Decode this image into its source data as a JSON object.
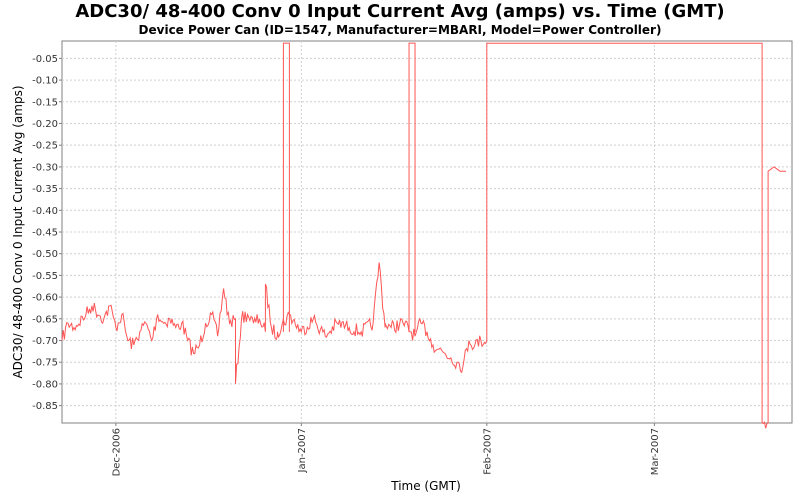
{
  "chart_data": {
    "type": "line",
    "title": "ADC30/ 48-400 Conv 0 Input Current  Avg (amps) vs. Time (GMT)",
    "subtitle": "Device Power Can (ID=1547, Manufacturer=MBARI, Model=Power Controller)",
    "xlabel": "Time (GMT)",
    "ylabel": "ADC30/ 48-400 Conv 0 Input Current  Avg (amps)",
    "xlim": [
      "2006-11-22",
      "2007-03-24"
    ],
    "ylim": [
      -0.89,
      -0.01
    ],
    "y_ticks": [
      -0.85,
      -0.8,
      -0.75,
      -0.7,
      -0.65,
      -0.6,
      -0.55,
      -0.5,
      -0.45,
      -0.4,
      -0.35,
      -0.3,
      -0.25,
      -0.2,
      -0.15,
      -0.1,
      -0.05
    ],
    "x_ticks": [
      {
        "date": "2006-12-01",
        "label": "Dec-2006"
      },
      {
        "date": "2007-01-01",
        "label": "Jan-2007"
      },
      {
        "date": "2007-02-01",
        "label": "Feb-2007"
      },
      {
        "date": "2007-03-01",
        "label": "Mar-2007"
      }
    ],
    "grid": true,
    "line_color": "#ff5555",
    "series": [
      {
        "x": [
          "2006-11-22",
          "2006-11-23",
          "2006-11-24",
          "2006-11-26",
          "2006-11-27",
          "2006-11-29",
          "2006-11-30",
          "2006-12-01",
          "2006-12-02",
          "2006-12-03",
          "2006-12-04",
          "2006-12-05",
          "2006-12-06",
          "2006-12-07",
          "2006-12-08",
          "2006-12-09",
          "2006-12-10",
          "2006-12-11",
          "2006-12-12",
          "2006-12-13",
          "2006-12-14",
          "2006-12-15",
          "2006-12-16",
          "2006-12-17",
          "2006-12-18",
          "2006-12-19",
          "2006-12-20",
          "2006-12-21",
          "2006-12-21",
          "2006-12-22",
          "2006-12-23",
          "2006-12-24",
          "2006-12-25",
          "2006-12-26",
          "2006-12-26",
          "2006-12-27",
          "2006-12-28",
          "2006-12-28",
          "2006-12-30",
          "2007-01-01",
          "2007-01-03",
          "2007-01-05",
          "2007-01-07",
          "2007-01-09",
          "2007-01-11",
          "2007-01-13",
          "2007-01-14",
          "2007-01-15",
          "2007-01-15",
          "2007-01-16",
          "2007-01-18",
          "2007-01-20",
          "2007-01-21",
          "2007-01-22",
          "2007-01-22",
          "2007-01-23",
          "2007-01-24",
          "2007-01-25",
          "2007-01-26",
          "2007-01-27",
          "2007-01-28",
          "2007-01-29",
          "2007-01-30",
          "2007-01-31",
          "2007-02-01",
          "2007-02-01",
          "2007-03-19",
          "2007-03-19",
          "2007-03-20",
          "2007-03-20",
          "2007-03-21",
          "2007-03-22",
          "2007-03-23"
        ],
        "y": [
          -0.7,
          -0.66,
          -0.67,
          -0.64,
          -0.62,
          -0.65,
          -0.62,
          -0.67,
          -0.64,
          -0.7,
          -0.71,
          -0.68,
          -0.66,
          -0.7,
          -0.64,
          -0.66,
          -0.65,
          -0.67,
          -0.66,
          -0.7,
          -0.73,
          -0.71,
          -0.66,
          -0.64,
          -0.69,
          -0.58,
          -0.66,
          -0.65,
          -0.8,
          -0.65,
          -0.64,
          -0.66,
          -0.65,
          -0.68,
          -0.57,
          -0.67,
          -0.69,
          -0.68,
          -0.64,
          -0.68,
          -0.65,
          -0.69,
          -0.66,
          -0.67,
          -0.68,
          -0.66,
          -0.52,
          -0.67,
          -0.66,
          -0.67,
          -0.66,
          -0.69,
          -0.66,
          -0.68,
          -0.68,
          -0.71,
          -0.72,
          -0.73,
          -0.74,
          -0.75,
          -0.76,
          -0.7,
          -0.71,
          -0.7,
          -0.7,
          -0.015,
          -0.015,
          -0.89,
          -0.89,
          -0.31,
          -0.3,
          -0.31,
          -0.31
        ]
      }
    ],
    "spikes": [
      {
        "from": "2006-12-29",
        "to": "2006-12-30",
        "value": -0.015
      },
      {
        "from": "2007-01-19",
        "to": "2007-01-20",
        "value": -0.015
      }
    ]
  }
}
